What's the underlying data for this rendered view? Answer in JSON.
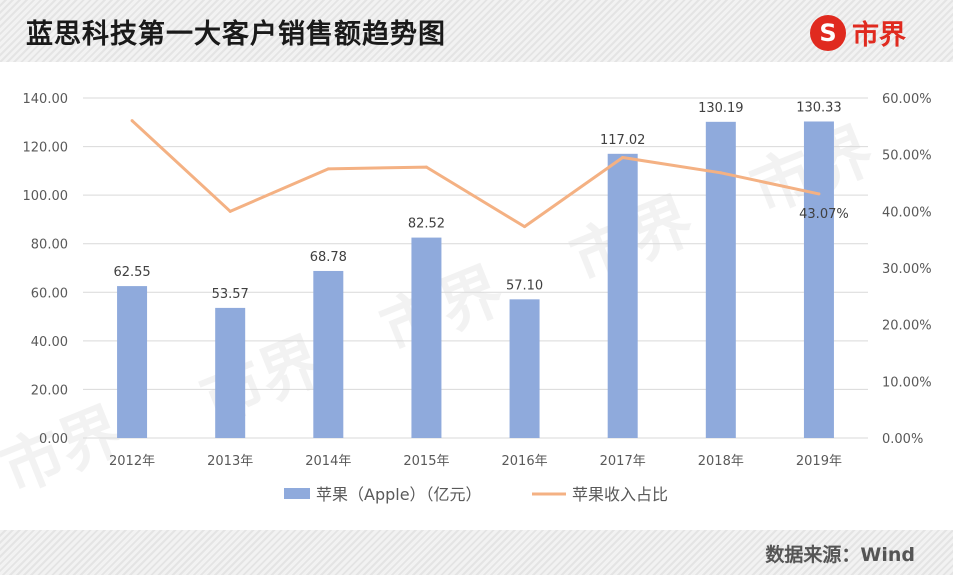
{
  "header": {
    "title": "蓝思科技第一大客户销售额趋势图",
    "logo_text": "市界",
    "logo_color": "#e02a1f"
  },
  "footer": {
    "source": "数据来源：Wind"
  },
  "watermark_text": "市界",
  "chart_data": {
    "type": "bar",
    "categories": [
      "2012年",
      "2013年",
      "2014年",
      "2015年",
      "2016年",
      "2017年",
      "2018年",
      "2019年"
    ],
    "series": [
      {
        "name": "苹果（Apple）（亿元）",
        "type": "bar",
        "axis": "left",
        "color": "#8faadc",
        "values": [
          62.55,
          53.57,
          68.78,
          82.52,
          57.1,
          117.02,
          130.19,
          130.33
        ],
        "data_labels": [
          "62.55",
          "53.57",
          "68.78",
          "82.52",
          "57.10",
          "117.02",
          "130.19",
          "130.33"
        ]
      },
      {
        "name": "苹果收入占比",
        "type": "line",
        "axis": "right",
        "color": "#f4b183",
        "values": [
          56.0,
          40.0,
          47.5,
          47.8,
          37.3,
          49.5,
          46.8,
          43.07
        ],
        "data_labels": [
          "",
          "",
          "",
          "",
          "",
          "",
          "",
          "43.07%"
        ]
      }
    ],
    "ylim": [
      0,
      140
    ],
    "yticks": [
      "0.00",
      "20.00",
      "40.00",
      "60.00",
      "80.00",
      "100.00",
      "120.00",
      "140.00"
    ],
    "y2lim": [
      0,
      60
    ],
    "y2ticks": [
      "0.00%",
      "10.00%",
      "20.00%",
      "30.00%",
      "40.00%",
      "50.00%",
      "60.00%"
    ],
    "grid": true,
    "legend_position": "bottom"
  }
}
